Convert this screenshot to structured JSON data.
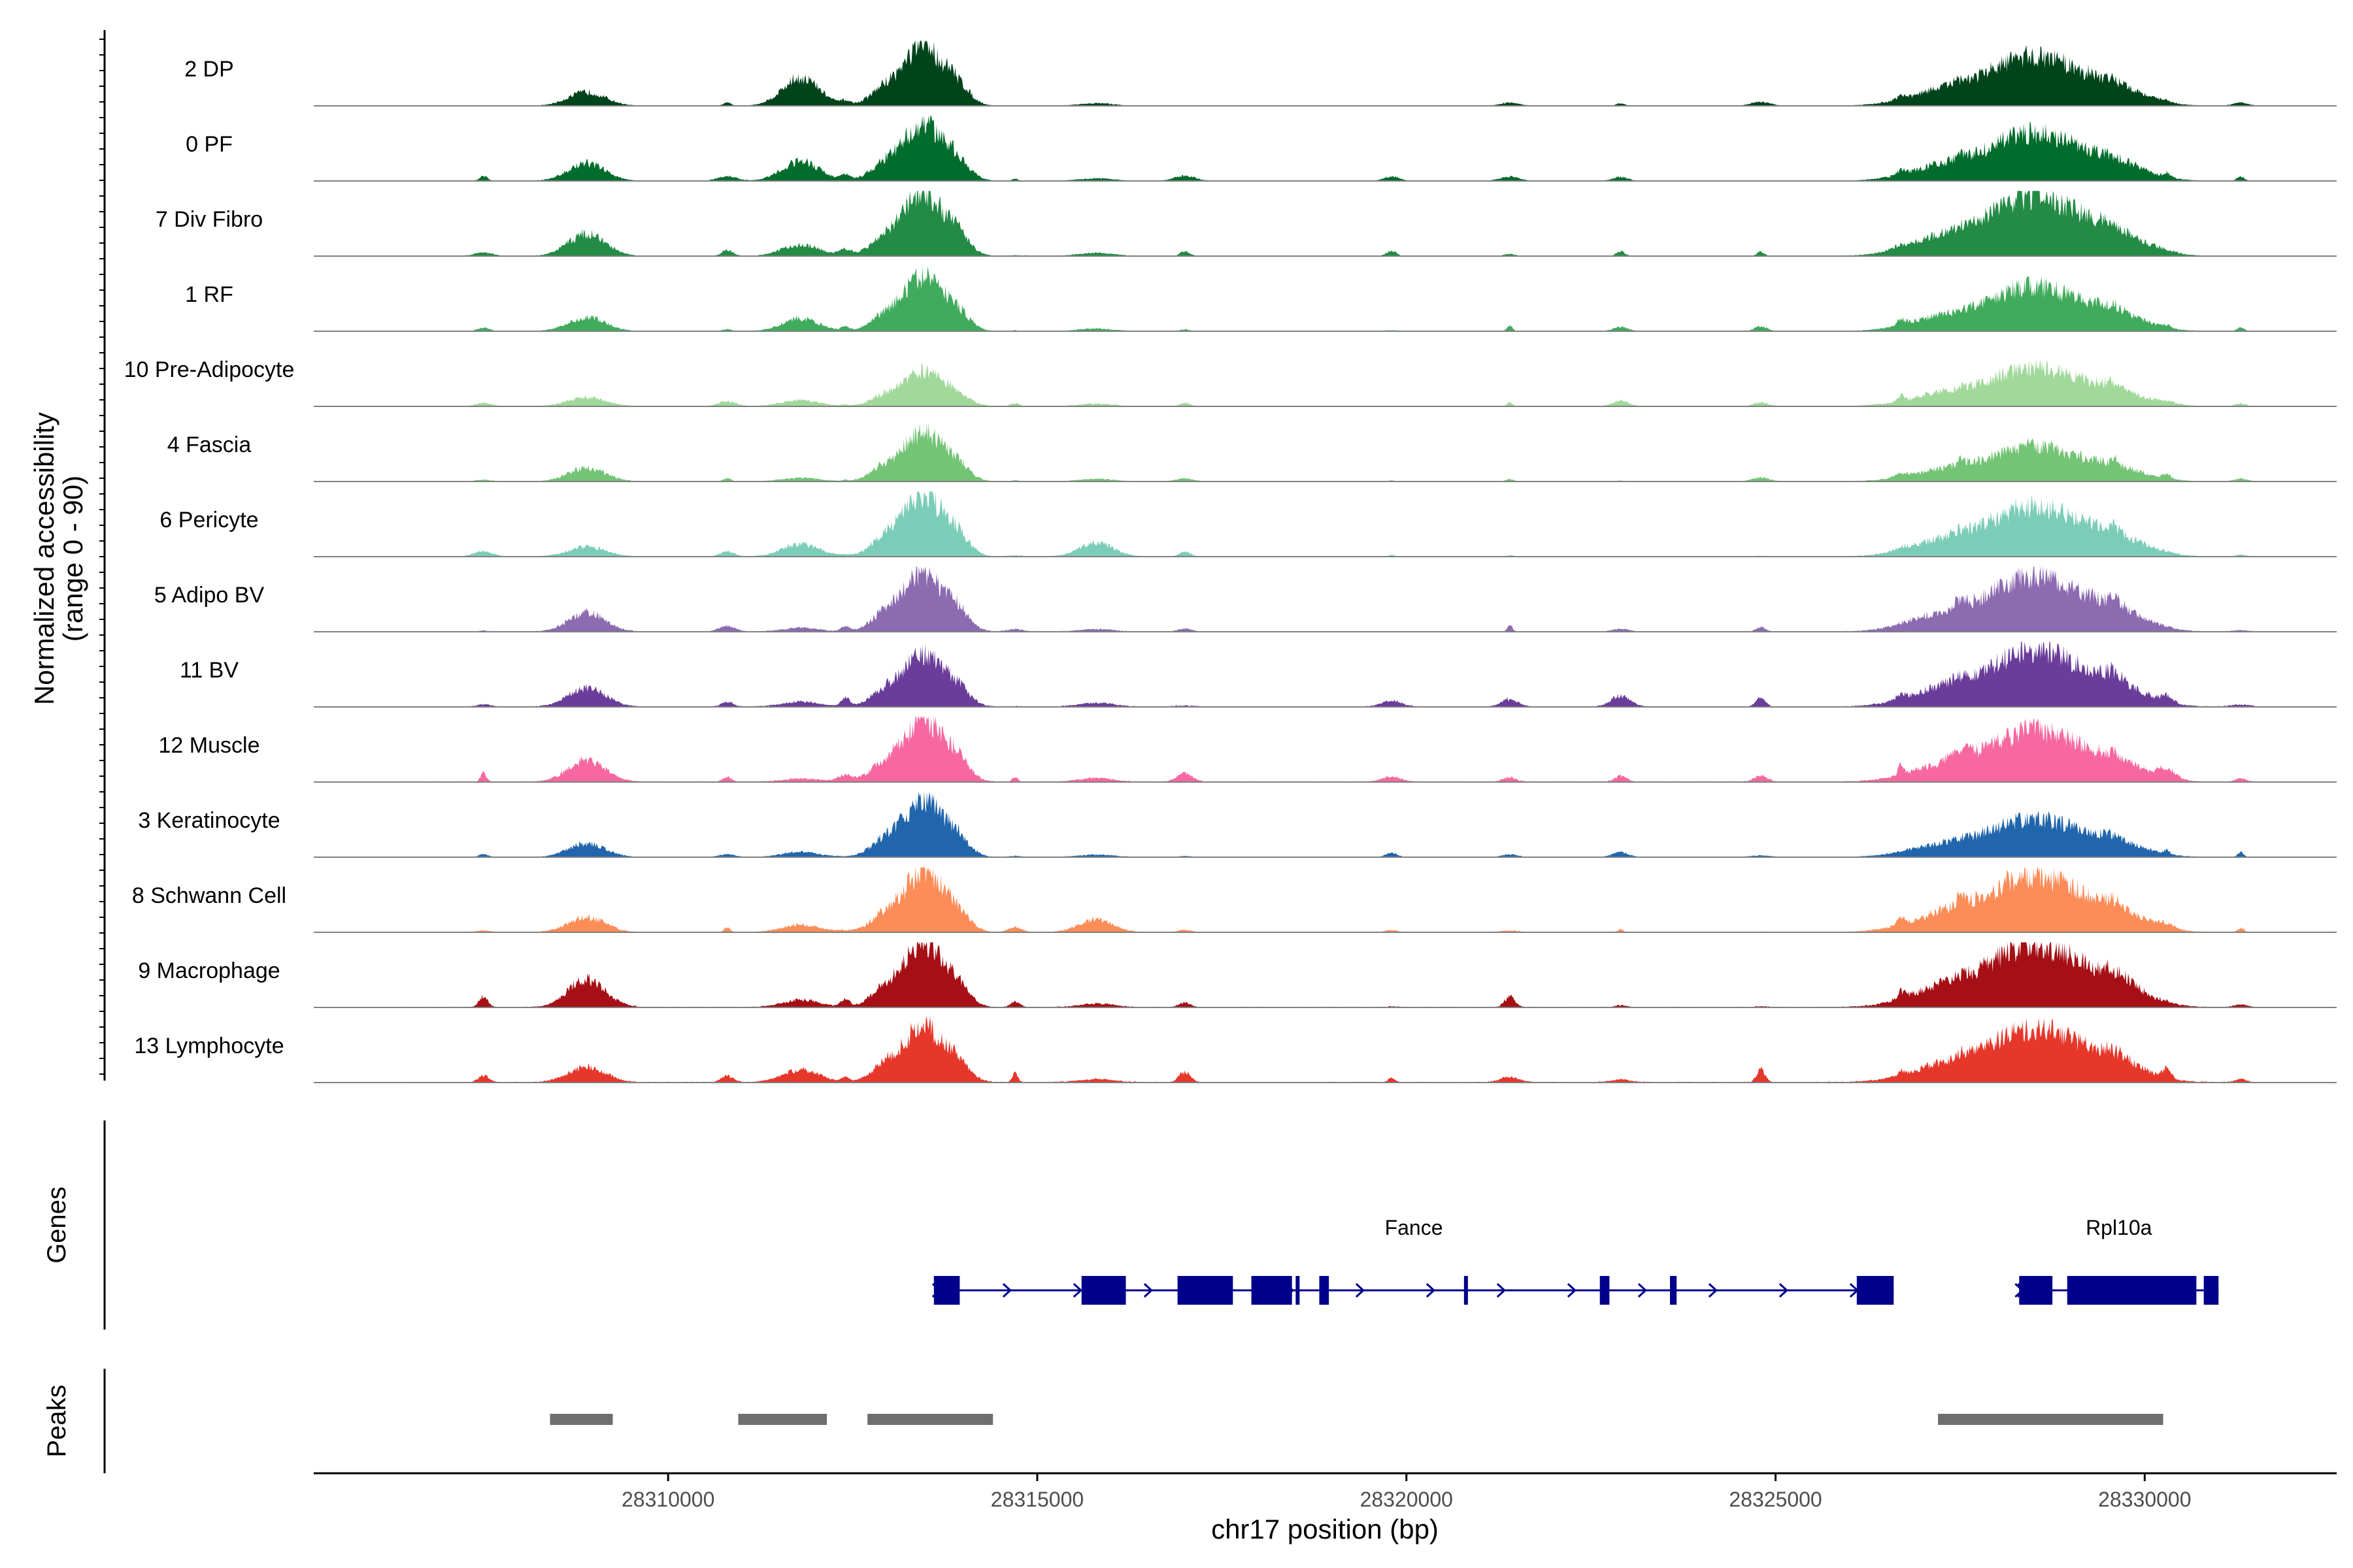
{
  "chart_data": {
    "type": "area",
    "title": "",
    "chromosome": "chr17",
    "xlabel": "chr17 position (bp)",
    "ylabel": "Normalized accessibility",
    "ylabel_range": "(range 0 - 90)",
    "xlim": [
      28305200,
      28332600
    ],
    "ylim": [
      0,
      90
    ],
    "x_ticks": [
      28310000,
      28315000,
      28320000,
      28325000,
      28330000
    ],
    "x_tick_labels": [
      "28310000",
      "28315000",
      "28320000",
      "28325000",
      "28330000"
    ],
    "baseline_color": "#808080",
    "peak_centers": [
      28308900,
      28311800,
      28313450,
      28315800,
      28328500
    ],
    "series": [
      {
        "name": "2 DP",
        "color": "#00441b",
        "peaks": [
          0.22,
          0.45,
          0.95,
          0.04,
          0.78
        ],
        "noise": 0.03
      },
      {
        "name": "0 PF",
        "color": "#006d2c",
        "peaks": [
          0.28,
          0.32,
          0.92,
          0.04,
          0.75
        ],
        "noise": 0.04
      },
      {
        "name": "7 Div Fibro",
        "color": "#238b45",
        "peaks": [
          0.36,
          0.18,
          1.0,
          0.05,
          0.95
        ],
        "noise": 0.05
      },
      {
        "name": "1 RF",
        "color": "#41ab5d",
        "peaks": [
          0.22,
          0.2,
          0.86,
          0.04,
          0.7
        ],
        "noise": 0.04
      },
      {
        "name": "10 Pre-Adipocyte",
        "color": "#a1d99b",
        "peaks": [
          0.14,
          0.1,
          0.55,
          0.04,
          0.6
        ],
        "noise": 0.05
      },
      {
        "name": "4 Fascia",
        "color": "#74c476",
        "peaks": [
          0.22,
          0.06,
          0.78,
          0.04,
          0.55
        ],
        "noise": 0.04
      },
      {
        "name": "6 Pericyte",
        "color": "#7ccdb8",
        "peaks": [
          0.16,
          0.2,
          1.0,
          0.22,
          0.8
        ],
        "noise": 0.04
      },
      {
        "name": "5 Adipo BV",
        "color": "#8c6bb1",
        "peaks": [
          0.3,
          0.06,
          0.95,
          0.04,
          0.85
        ],
        "noise": 0.05
      },
      {
        "name": "11 BV",
        "color": "#6a3d9a",
        "peaks": [
          0.3,
          0.08,
          0.85,
          0.06,
          0.9
        ],
        "noise": 0.08
      },
      {
        "name": "12 Muscle",
        "color": "#f768a1",
        "peaks": [
          0.34,
          0.05,
          1.0,
          0.06,
          0.8
        ],
        "noise": 0.08
      },
      {
        "name": "3 Keratinocyte",
        "color": "#2166ac",
        "peaks": [
          0.22,
          0.08,
          0.92,
          0.04,
          0.6
        ],
        "noise": 0.04
      },
      {
        "name": "8 Schwann Cell",
        "color": "#fc8d59",
        "peaks": [
          0.24,
          0.12,
          0.95,
          0.2,
          0.9
        ],
        "noise": 0.05
      },
      {
        "name": "9 Macrophage",
        "color": "#a50f15",
        "peaks": [
          0.45,
          0.12,
          1.0,
          0.06,
          1.0
        ],
        "noise": 0.08
      },
      {
        "name": "13 Lymphocyte",
        "color": "#e6372b",
        "peaks": [
          0.25,
          0.2,
          0.9,
          0.05,
          0.85
        ],
        "noise": 0.1
      }
    ],
    "genes_panel_title": "Genes",
    "genes": [
      {
        "name": "Fance",
        "start": 28313600,
        "end": 28326600,
        "strand": "+",
        "exons": [
          [
            28313600,
            28313950
          ],
          [
            28315600,
            28316200
          ],
          [
            28316900,
            28317650
          ],
          [
            28317900,
            28318450
          ],
          [
            28318500,
            28318550
          ],
          [
            28318820,
            28318950
          ],
          [
            28320780,
            28320830
          ],
          [
            28322620,
            28322750
          ],
          [
            28323570,
            28323660
          ],
          [
            28326100,
            28326600
          ]
        ]
      },
      {
        "name": "Rpl10a",
        "start": 28328300,
        "end": 28331000,
        "strand": "+",
        "exons": [
          [
            28328300,
            28328750
          ],
          [
            28328950,
            28330700
          ],
          [
            28330800,
            28331000
          ]
        ]
      }
    ],
    "peaks_panel_title": "Peaks",
    "peak_regions": [
      [
        28308400,
        28309250
      ],
      [
        28310950,
        28312150
      ],
      [
        28312700,
        28314400
      ],
      [
        28327200,
        28330250
      ]
    ],
    "peak_region_color": "#6e6e6e",
    "gene_color": "#00008b"
  }
}
